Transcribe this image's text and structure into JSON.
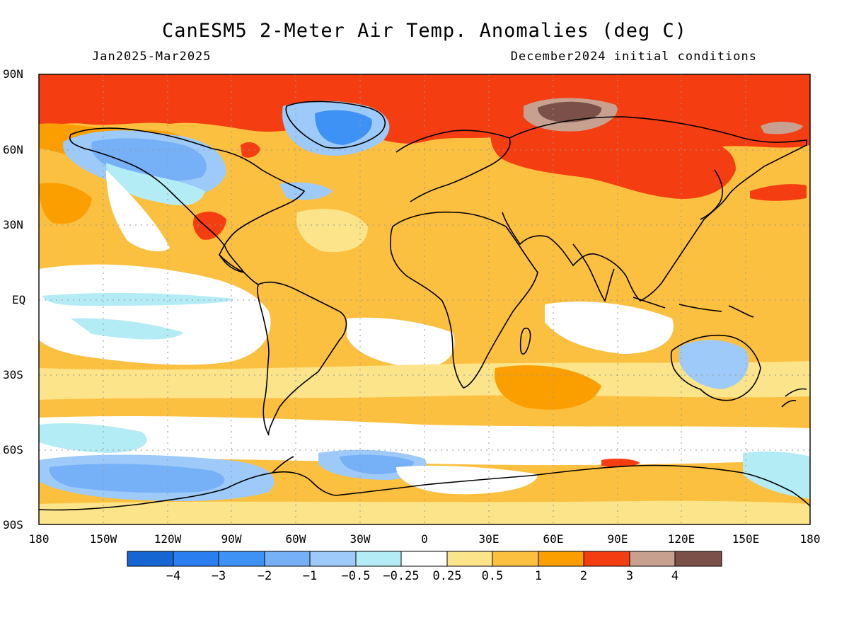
{
  "header": {
    "title": "CanESM5 2-Meter Air Temp. Anomalies (deg C)",
    "period": "Jan2025-Mar2025",
    "initial_conditions": "December2024 initial conditions"
  },
  "map": {
    "lon_ticks": [
      "180",
      "150W",
      "120W",
      "90W",
      "60W",
      "30W",
      "0",
      "30E",
      "60E",
      "90E",
      "120E",
      "150E",
      "180"
    ],
    "lat_ticks": [
      "90N",
      "60N",
      "30N",
      "EQ",
      "30S",
      "60S",
      "90S"
    ],
    "background_color": "#fcc040"
  },
  "colorbar": {
    "colors": [
      "#1565d2",
      "#2b7ef0",
      "#3f92f5",
      "#76b0f7",
      "#9dcaf9",
      "#b4ecf6",
      "#ffffff",
      "#fbe48a",
      "#fcc040",
      "#fb9e00",
      "#f53d12",
      "#c8a090",
      "#7a5048"
    ],
    "labels": [
      "−4",
      "−3",
      "−2",
      "−1",
      "−0.5",
      "−0.25",
      "0.25",
      "0.5",
      "1",
      "2",
      "3",
      "4"
    ]
  }
}
